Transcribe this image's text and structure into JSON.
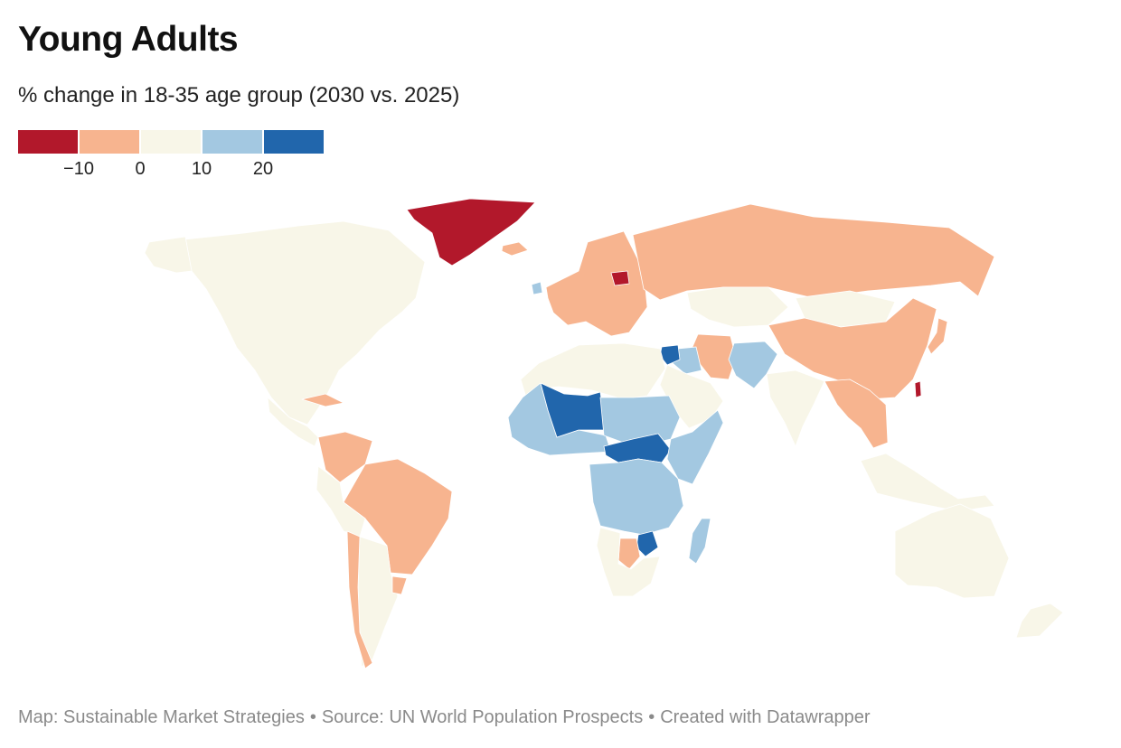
{
  "title": "Young Adults",
  "subtitle": "% change in 18-35 age group (2030 vs. 2025)",
  "legend": {
    "bins": [
      {
        "color": "#b2182b"
      },
      {
        "color": "#f7b48f"
      },
      {
        "color": "#f8f6e8"
      },
      {
        "color": "#a3c8e1"
      },
      {
        "color": "#2166ac"
      }
    ],
    "ticks": [
      "−10",
      "0",
      "10",
      "20"
    ]
  },
  "map": {
    "regions": [
      {
        "name": "north-america",
        "bin": 2
      },
      {
        "name": "alaska",
        "bin": 2
      },
      {
        "name": "greenland",
        "bin": 0
      },
      {
        "name": "iceland",
        "bin": 1
      },
      {
        "name": "ireland",
        "bin": 3
      },
      {
        "name": "europe",
        "bin": 1
      },
      {
        "name": "lithuania",
        "bin": 0
      },
      {
        "name": "russia",
        "bin": 1
      },
      {
        "name": "kazakhstan",
        "bin": 2
      },
      {
        "name": "mongolia",
        "bin": 2
      },
      {
        "name": "china",
        "bin": 1
      },
      {
        "name": "japan",
        "bin": 1
      },
      {
        "name": "taiwan",
        "bin": 0
      },
      {
        "name": "iran",
        "bin": 1
      },
      {
        "name": "afghanistan-pakistan",
        "bin": 3
      },
      {
        "name": "iraq",
        "bin": 3
      },
      {
        "name": "syria",
        "bin": 4
      },
      {
        "name": "arabia",
        "bin": 2
      },
      {
        "name": "north-africa",
        "bin": 2
      },
      {
        "name": "sahel-west",
        "bin": 3
      },
      {
        "name": "mali-niger",
        "bin": 4
      },
      {
        "name": "sudan-chad",
        "bin": 3
      },
      {
        "name": "car-south-sudan",
        "bin": 4
      },
      {
        "name": "horn-of-africa",
        "bin": 3
      },
      {
        "name": "central-africa",
        "bin": 3
      },
      {
        "name": "zimbabwe",
        "bin": 4
      },
      {
        "name": "botswana",
        "bin": 1
      },
      {
        "name": "south-africa",
        "bin": 2
      },
      {
        "name": "madagascar",
        "bin": 3
      },
      {
        "name": "india",
        "bin": 2
      },
      {
        "name": "southeast-asia",
        "bin": 1
      },
      {
        "name": "indonesia",
        "bin": 2
      },
      {
        "name": "australia",
        "bin": 2
      },
      {
        "name": "new-zealand",
        "bin": 2
      },
      {
        "name": "central-america",
        "bin": 2
      },
      {
        "name": "caribbean",
        "bin": 1
      },
      {
        "name": "colombia-venezuela",
        "bin": 1
      },
      {
        "name": "brazil",
        "bin": 1
      },
      {
        "name": "andes",
        "bin": 2
      },
      {
        "name": "argentina",
        "bin": 2
      },
      {
        "name": "chile",
        "bin": 1
      },
      {
        "name": "uruguay",
        "bin": 1
      }
    ]
  },
  "footer": {
    "map_credit": "Map: Sustainable Market Strategies",
    "source": "Source: UN World Population Prospects",
    "tool": "Created with Datawrapper",
    "separator": "•"
  }
}
